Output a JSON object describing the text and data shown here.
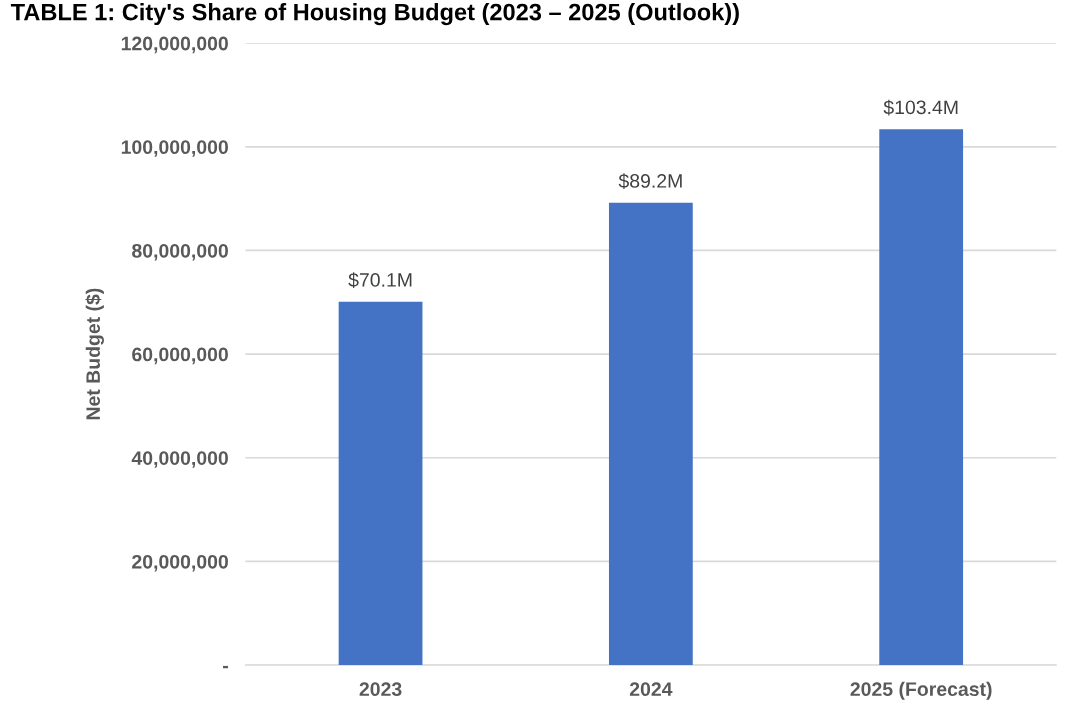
{
  "chart_data": {
    "type": "bar",
    "title": "TABLE 1: City's Share of Housing Budget (2023 – 2025 (Outlook))",
    "ylabel": "Net Budget ($)",
    "categories": [
      "2023",
      "2024",
      "2025 (Forecast)"
    ],
    "values": [
      70100000,
      89200000,
      103400000
    ],
    "color": "#4472c4",
    "value_labels": [
      "$70.1M",
      "$89.2M",
      "$103.4M"
    ],
    "ylim": [
      0,
      120000000
    ],
    "yticks": [
      {
        "value": 0,
        "label": "-"
      },
      {
        "value": 20000000,
        "label": "20,000,000"
      },
      {
        "value": 40000000,
        "label": "40,000,000"
      },
      {
        "value": 60000000,
        "label": "60,000,000"
      },
      {
        "value": 80000000,
        "label": "80,000,000"
      },
      {
        "value": 100000000,
        "label": "100,000,000"
      },
      {
        "value": 120000000,
        "label": "120,000,000"
      }
    ],
    "grid": "y"
  }
}
